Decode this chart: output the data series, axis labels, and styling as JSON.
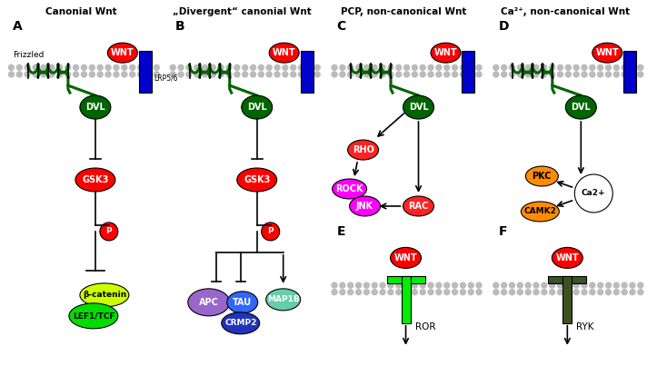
{
  "panel_titles": [
    "Canonial Wnt",
    "„Divergent“ canonial Wnt",
    "PCP, non-canonical Wnt",
    "Ca²⁺, non-canonical Wnt"
  ],
  "colors": {
    "wnt": "#FF0000",
    "dvl": "#006400",
    "lrp": "#0000CC",
    "gsk3": "#FF0000",
    "p_circle": "#FF0000",
    "beta_catenin": "#CCFF00",
    "lef1tcf": "#00DD00",
    "apc": "#9966CC",
    "tau": "#3366FF",
    "map1b": "#66CCAA",
    "crmp2": "#2233BB",
    "rho": "#FF2222",
    "rock": "#FF00FF",
    "jnk": "#FF00FF",
    "rac": "#FF2222",
    "pkc": "#FF8C00",
    "camk2": "#FF8C00",
    "ca2plus": "#FFFFFF",
    "ror_receptor": "#00EE00",
    "ryk_receptor": "#3B5323",
    "membrane_balls": "#BBBBBB",
    "frizzled_green": "#006400",
    "background": "#FFFFFF"
  }
}
